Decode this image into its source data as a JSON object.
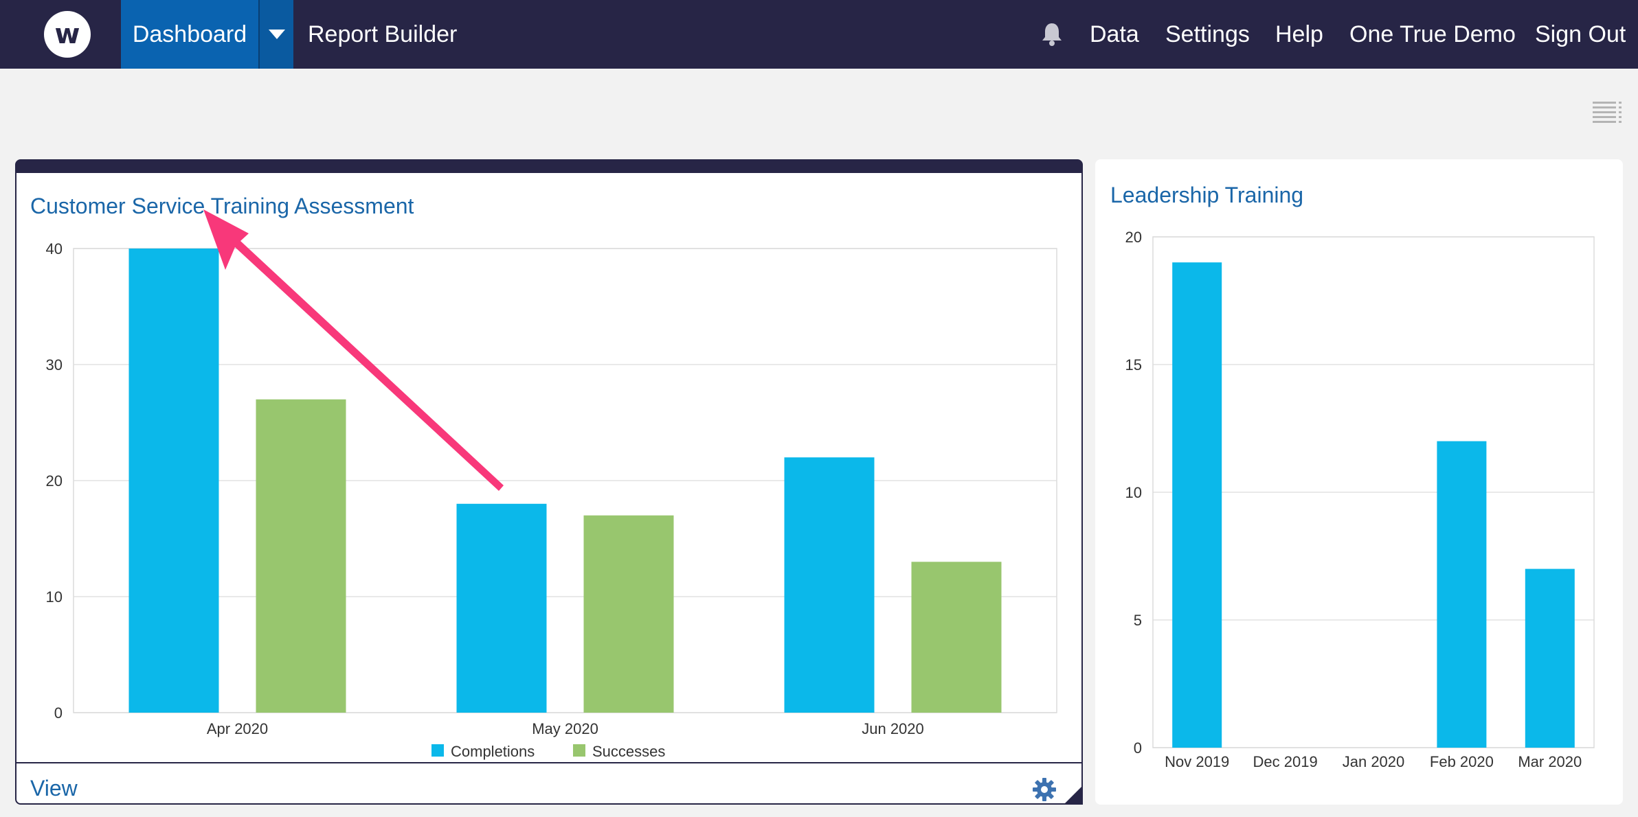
{
  "header": {
    "logo_letter": "w",
    "nav": {
      "dashboard": "Dashboard",
      "report_builder": "Report Builder",
      "data": "Data",
      "settings": "Settings",
      "help": "Help",
      "account": "One True Demo",
      "sign_out": "Sign Out"
    },
    "icons": [
      "bell-icon",
      "chevron-down-icon",
      "list-view-icon"
    ]
  },
  "panels": {
    "left": {
      "title": "Customer Service Training Assessment",
      "footer_link": "View"
    },
    "right": {
      "title": "Leadership Training"
    }
  },
  "colors": {
    "nav_bg": "#272546",
    "nav_active": "#0a63b0",
    "completions": "#0bb8ea",
    "successes": "#98c66e",
    "title_blue": "#1a66a8",
    "annotation_arrow": "#f8387a"
  },
  "chart_data": [
    {
      "type": "bar",
      "categories": [
        "Apr 2020",
        "May 2020",
        "Jun 2020"
      ],
      "series": [
        {
          "name": "Completions",
          "values": [
            40,
            18,
            22
          ]
        },
        {
          "name": "Successes",
          "values": [
            27,
            17,
            13
          ]
        }
      ],
      "title": "Customer Service Training Assessment",
      "ylim": [
        0,
        40
      ],
      "yticks": [
        0,
        10,
        20,
        30,
        40
      ],
      "grid": true,
      "legend": "bottom"
    },
    {
      "type": "bar",
      "categories": [
        "Nov 2019",
        "Dec 2019",
        "Jan 2020",
        "Feb 2020",
        "Mar 2020"
      ],
      "values": [
        19,
        0,
        0,
        12,
        7
      ],
      "title": "Leadership Training",
      "ylim": [
        0,
        20
      ],
      "yticks": [
        0,
        5,
        10,
        15,
        20
      ],
      "grid": true
    }
  ]
}
